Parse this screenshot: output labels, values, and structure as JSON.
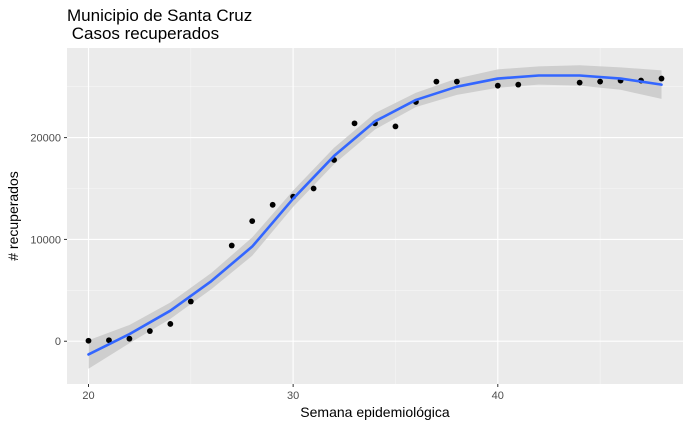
{
  "chart_data": {
    "type": "scatter",
    "title": "Municipio de Santa Cruz",
    "subtitle": " Casos recuperados",
    "xlabel": "Semana epidemiológica",
    "ylabel": "# recuperados",
    "xlim": [
      18.95,
      49.05
    ],
    "ylim": [
      -4200,
      28800
    ],
    "x_ticks": [
      20,
      30,
      40
    ],
    "x_tick_labels": [
      "20",
      "30",
      "40"
    ],
    "y_ticks": [
      0,
      10000,
      20000
    ],
    "y_tick_labels": [
      "0",
      "10000",
      "20000"
    ],
    "grid": true,
    "colors": {
      "panel": "#ebebeb",
      "grid_major": "#ffffff",
      "points": "#000000",
      "smooth_line": "#3366ff",
      "ribbon": "#c9c9c9"
    },
    "series": [
      {
        "kind": "points",
        "x": [
          20,
          21,
          22,
          23,
          24,
          25,
          27,
          28,
          29,
          30,
          31,
          32,
          33,
          34,
          35,
          36,
          37,
          38,
          40,
          41,
          44,
          45,
          46,
          47,
          48
        ],
        "y": [
          50,
          100,
          250,
          1000,
          1700,
          3900,
          9400,
          11800,
          13400,
          14200,
          15000,
          17800,
          21400,
          21400,
          21100,
          23500,
          25500,
          25500,
          25100,
          25200,
          25400,
          25500,
          25600,
          25600,
          25800
        ]
      },
      {
        "kind": "smooth",
        "x": [
          20,
          22,
          24,
          26,
          28,
          30,
          32,
          34,
          36,
          38,
          40,
          42,
          44,
          46,
          48
        ],
        "y": [
          -1300,
          700,
          3000,
          5900,
          9300,
          14000,
          18200,
          21600,
          23700,
          25000,
          25800,
          26100,
          26100,
          25800,
          25200
        ],
        "band_lower": [
          -2700,
          -200,
          2200,
          5100,
          8400,
          13200,
          17400,
          20800,
          23000,
          24200,
          24900,
          25200,
          25100,
          24700,
          23800
        ],
        "band_upper": [
          100,
          1600,
          3800,
          6700,
          10200,
          14800,
          19000,
          22400,
          24400,
          25800,
          26700,
          27000,
          27100,
          26900,
          26600
        ]
      }
    ]
  }
}
